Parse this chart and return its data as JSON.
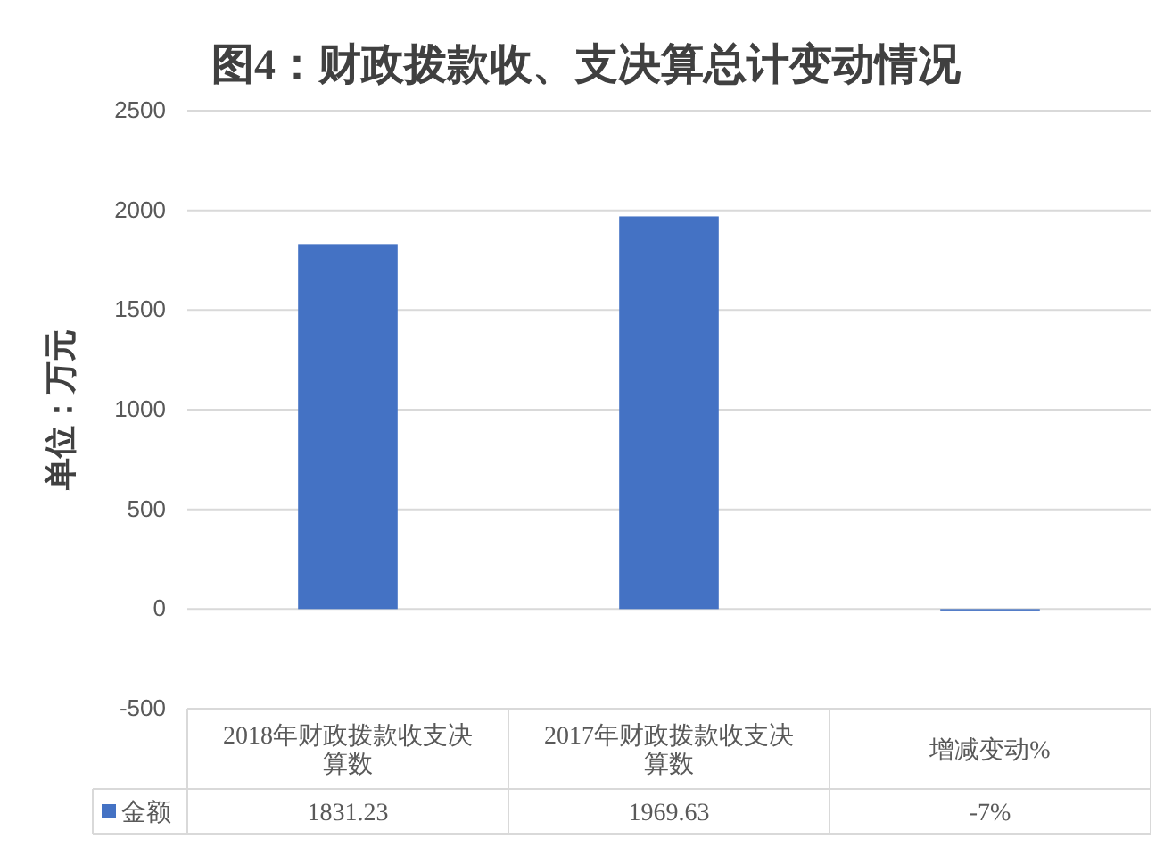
{
  "chart_data": {
    "type": "bar",
    "title": "图4：财政拨款收、支决算总计变动情况",
    "ylabel": "单位：万元",
    "categories": [
      "2018年财政拨款收支决算数",
      "2017年财政拨款收支决算数",
      "增减变动%"
    ],
    "series": [
      {
        "name": "金额",
        "color": "#4472c4",
        "values": [
          1831.23,
          1969.63,
          -7
        ],
        "value_labels": [
          "1831.23",
          "1969.63",
          "-7%"
        ]
      }
    ],
    "ylim": [
      -500,
      2500
    ],
    "yticks": [
      -500,
      0,
      500,
      1000,
      1500,
      2000,
      2500
    ],
    "grid": true,
    "legend": "bottom"
  }
}
